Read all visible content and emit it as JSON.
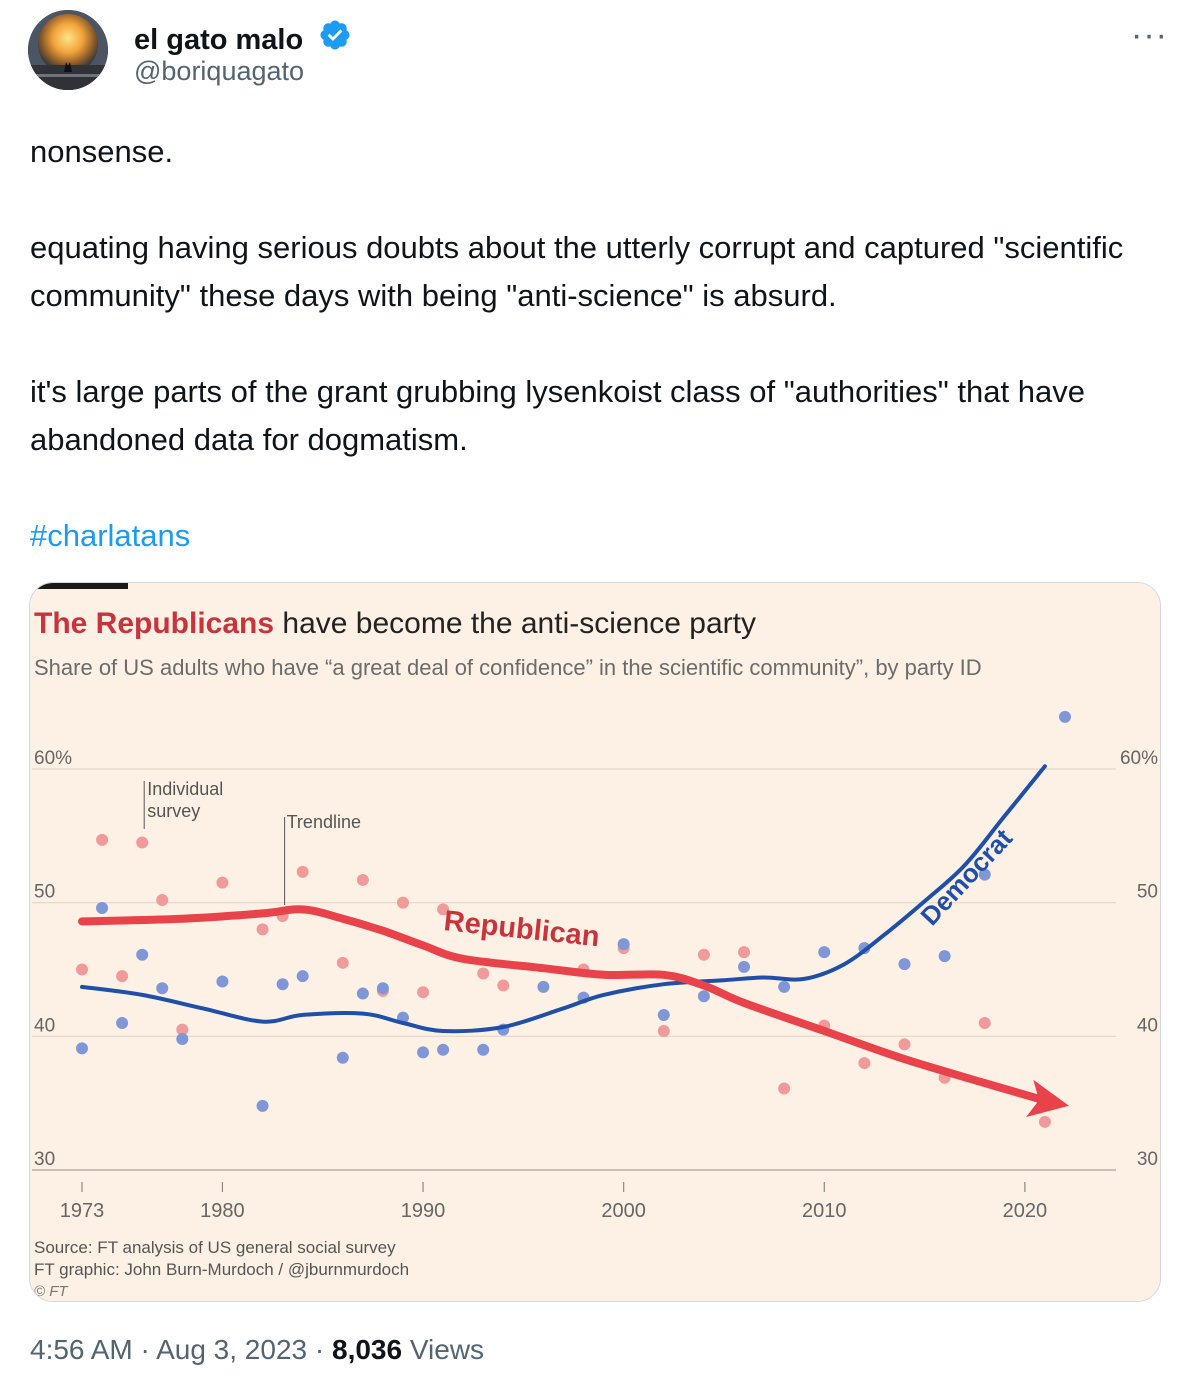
{
  "user": {
    "display_name": "el gato malo",
    "handle": "@boriquagato",
    "avatar_icon": "avatar-image",
    "verified_icon": "verified-badge-icon"
  },
  "more_label": "···",
  "tweet": {
    "line1": "nonsense.",
    "para2": "equating  having serious doubts about the utterly corrupt and captured \"scientific community\" these days with being \"anti-science\" is absurd.",
    "para3": "it's large parts of the grant grubbing lysenkoist class of \"authorities\" that have abandoned data for dogmatism.",
    "hashtag": "#charlatans"
  },
  "footer": {
    "time": "4:56 AM",
    "sep1": " · ",
    "date": "Aug 3, 2023",
    "sep2": " · ",
    "views_count": "8,036",
    "views_label": " Views"
  },
  "colors": {
    "republican": "#e8434b",
    "democrat": "#1f4fa8",
    "republican_point": "#f09a9a",
    "democrat_point": "#7f97d6",
    "background": "#fdf1e5"
  },
  "chart_data": {
    "type": "scatter",
    "title_highlight": "The Republicans",
    "title_rest": " have become the anti-science party",
    "subtitle": "Share of US adults who have “a great deal of confidence” in the scientific community”, by party ID",
    "ylim": [
      30,
      60
    ],
    "xlim": [
      1973,
      2022
    ],
    "y_ticks": [
      {
        "value": 60,
        "left": "60%",
        "right": "60%"
      },
      {
        "value": 50,
        "left": "50",
        "right": "50"
      },
      {
        "value": 40,
        "left": "40",
        "right": "40"
      },
      {
        "value": 30,
        "left": "30",
        "right": "30"
      }
    ],
    "x_ticks": [
      1973,
      1980,
      1990,
      2000,
      2010,
      2020
    ],
    "annotations": {
      "individual": "Individual\nsurvey",
      "trendline": "Trendline"
    },
    "series": [
      {
        "name": "Republican",
        "label": "Republican",
        "points": [
          [
            1973,
            45
          ],
          [
            1974,
            54.7
          ],
          [
            1975,
            44.5
          ],
          [
            1976,
            54.5
          ],
          [
            1977,
            50.2
          ],
          [
            1978,
            40.5
          ],
          [
            1980,
            51.5
          ],
          [
            1982,
            48
          ],
          [
            1983,
            49
          ],
          [
            1984,
            52.3
          ],
          [
            1986,
            45.5
          ],
          [
            1987,
            51.7
          ],
          [
            1988,
            43.4
          ],
          [
            1989,
            50
          ],
          [
            1990,
            43.3
          ],
          [
            1991,
            49.5
          ],
          [
            1993,
            44.7
          ],
          [
            1994,
            43.8
          ],
          [
            1998,
            45
          ],
          [
            2000,
            46.6
          ],
          [
            2002,
            40.4
          ],
          [
            2004,
            46.1
          ],
          [
            2006,
            46.3
          ],
          [
            2008,
            36.1
          ],
          [
            2010,
            40.8
          ],
          [
            2012,
            38
          ],
          [
            2014,
            39.4
          ],
          [
            2016,
            36.9
          ],
          [
            2018,
            41
          ],
          [
            2021,
            33.6
          ]
        ],
        "trend": [
          [
            1973,
            48.6
          ],
          [
            1978,
            48.8
          ],
          [
            1982,
            49.2
          ],
          [
            1984,
            49.5
          ],
          [
            1986,
            48.8
          ],
          [
            1988,
            47.9
          ],
          [
            1990,
            46.8
          ],
          [
            1992,
            45.8
          ],
          [
            1996,
            45.1
          ],
          [
            1999,
            44.6
          ],
          [
            2002,
            44.6
          ],
          [
            2004,
            43.8
          ],
          [
            2006,
            42.5
          ],
          [
            2010,
            40.4
          ],
          [
            2014,
            38.3
          ],
          [
            2018,
            36.5
          ],
          [
            2021,
            35.2
          ]
        ],
        "arrow_end": [
          2022.2,
          34.8
        ]
      },
      {
        "name": "Democrat",
        "label": "Democrat",
        "points": [
          [
            1973,
            39.1
          ],
          [
            1974,
            49.6
          ],
          [
            1975,
            41
          ],
          [
            1976,
            46.1
          ],
          [
            1977,
            43.6
          ],
          [
            1978,
            39.8
          ],
          [
            1980,
            44.1
          ],
          [
            1982,
            34.8
          ],
          [
            1983,
            43.9
          ],
          [
            1984,
            44.5
          ],
          [
            1986,
            38.4
          ],
          [
            1987,
            43.2
          ],
          [
            1988,
            43.6
          ],
          [
            1989,
            41.4
          ],
          [
            1990,
            38.8
          ],
          [
            1991,
            39
          ],
          [
            1993,
            39
          ],
          [
            1994,
            40.5
          ],
          [
            1996,
            43.7
          ],
          [
            1998,
            42.9
          ],
          [
            2000,
            46.9
          ],
          [
            2002,
            41.6
          ],
          [
            2004,
            43
          ],
          [
            2006,
            45.2
          ],
          [
            2008,
            43.7
          ],
          [
            2010,
            46.3
          ],
          [
            2012,
            46.6
          ],
          [
            2014,
            45.4
          ],
          [
            2016,
            46
          ],
          [
            2018,
            52.1
          ],
          [
            2022,
            63.9
          ]
        ],
        "trend": [
          [
            1973,
            43.7
          ],
          [
            1976,
            43.1
          ],
          [
            1979,
            42.1
          ],
          [
            1982,
            41.1
          ],
          [
            1984,
            41.6
          ],
          [
            1987,
            41.7
          ],
          [
            1989,
            41
          ],
          [
            1991,
            40.4
          ],
          [
            1994,
            40.7
          ],
          [
            1997,
            42.1
          ],
          [
            1999,
            43.1
          ],
          [
            2002,
            43.9
          ],
          [
            2005,
            44.2
          ],
          [
            2007,
            44.4
          ],
          [
            2009,
            44.3
          ],
          [
            2011,
            45.4
          ],
          [
            2013,
            47.6
          ],
          [
            2015,
            50.1
          ],
          [
            2017,
            52.8
          ],
          [
            2019,
            56.5
          ],
          [
            2021,
            60.2
          ]
        ]
      }
    ],
    "source_lines": [
      "Source: FT analysis of US general social survey",
      "FT graphic: John Burn-Murdoch / @jburnmurdoch",
      "© FT"
    ]
  }
}
